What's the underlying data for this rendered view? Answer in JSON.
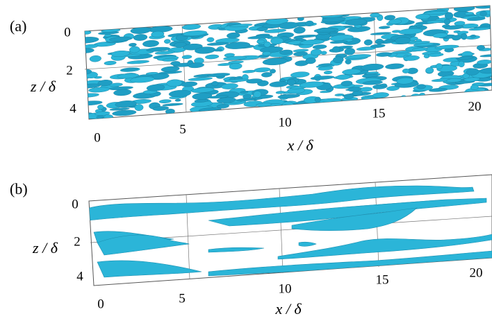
{
  "panels": [
    {
      "label": "(a)",
      "z_axis": {
        "title": "z / δ",
        "ticks": [
          "0",
          "2",
          "4"
        ]
      },
      "x_axis": {
        "title": "x / δ",
        "ticks": [
          "0",
          "5",
          "10",
          "15",
          "20"
        ]
      }
    },
    {
      "label": "(b)",
      "z_axis": {
        "title": "z / δ",
        "ticks": [
          "0",
          "2",
          "4"
        ]
      },
      "x_axis": {
        "title": "x / δ",
        "ticks": [
          "0",
          "5",
          "10",
          "15",
          "20"
        ]
      }
    }
  ]
}
